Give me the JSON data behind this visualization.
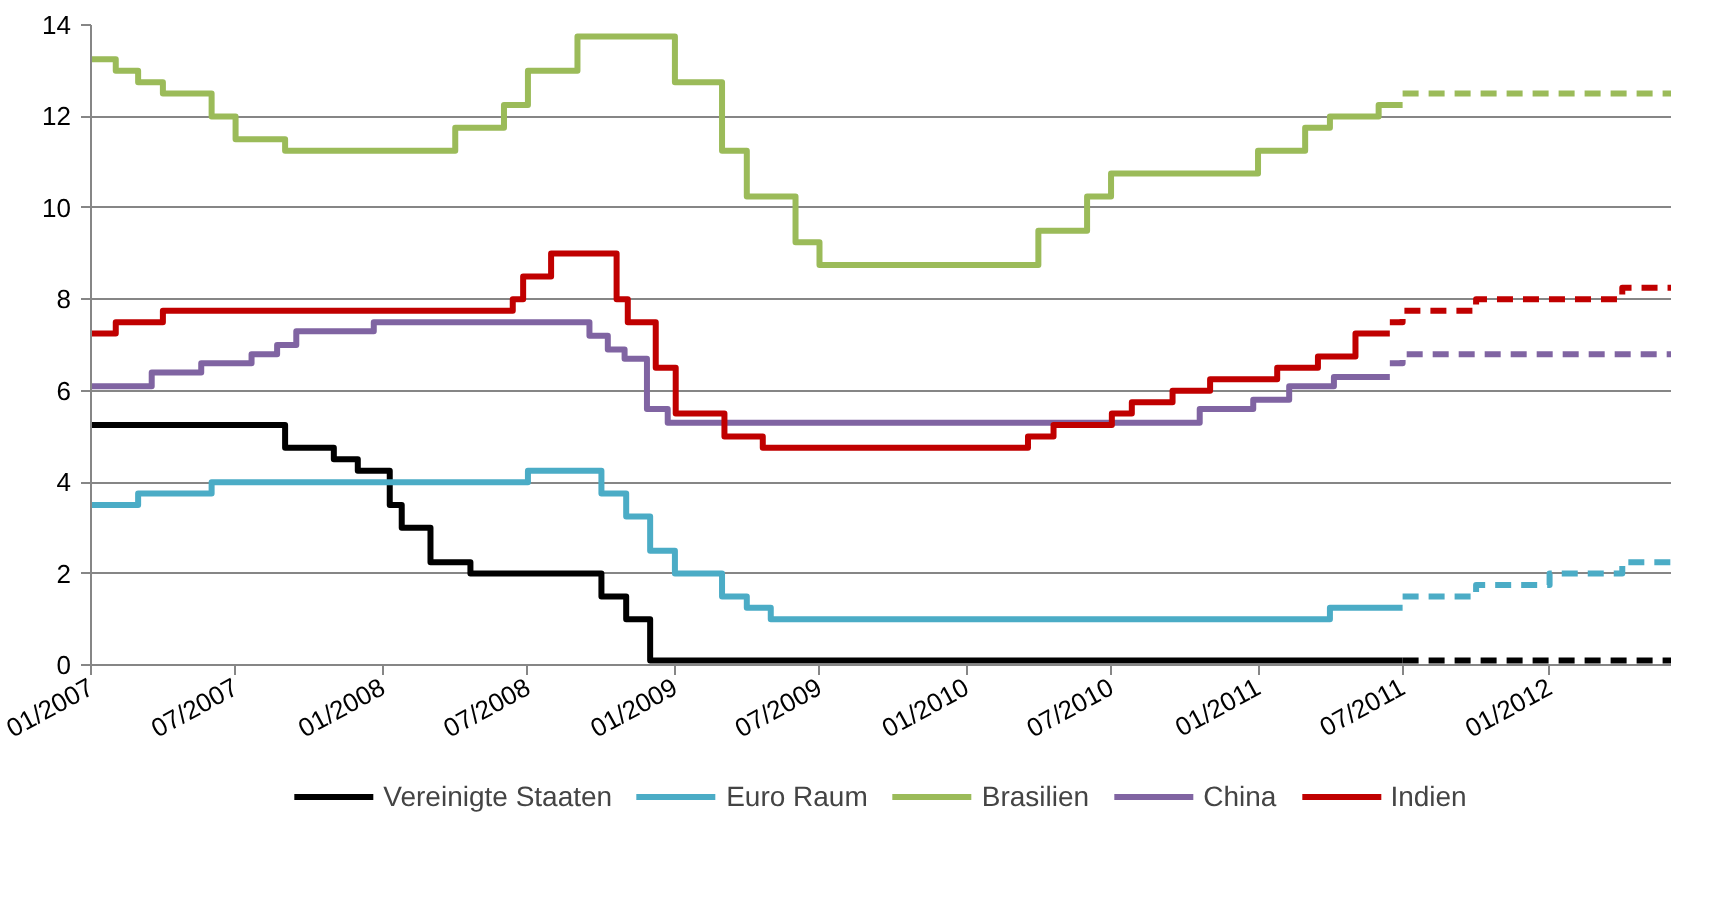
{
  "chart_data": {
    "type": "step",
    "xlim": [
      "2007-01",
      "2012-06"
    ],
    "ylim": [
      0,
      14
    ],
    "yticks": [
      0,
      2,
      4,
      6,
      8,
      10,
      12,
      14
    ],
    "xticks": [
      {
        "value": "2007-01",
        "label": "01/2007"
      },
      {
        "value": "2007-07",
        "label": "07/2007"
      },
      {
        "value": "2008-01",
        "label": "01/2008"
      },
      {
        "value": "2008-07",
        "label": "07/2008"
      },
      {
        "value": "2009-01",
        "label": "01/2009"
      },
      {
        "value": "2009-07",
        "label": "07/2009"
      },
      {
        "value": "2010-01",
        "label": "01/2010"
      },
      {
        "value": "2010-07",
        "label": "07/2010"
      },
      {
        "value": "2011-01",
        "label": "01/2011"
      },
      {
        "value": "2011-07",
        "label": "07/2011"
      },
      {
        "value": "2012-01",
        "label": "01/2012"
      }
    ],
    "grid": "y",
    "legend": "bottom",
    "series": [
      {
        "name": "Vereinigte Staaten",
        "color": "#000000",
        "line_style": "solid",
        "x": [
          "2007-01",
          "2007-09",
          "2007-11",
          "2007-12",
          "2008-01-10",
          "2008-01-25",
          "2008-03",
          "2008-04-20",
          "2008-10",
          "2008-11",
          "2008-12",
          "2011-07"
        ],
        "values": [
          5.25,
          4.75,
          4.5,
          4.25,
          3.5,
          3.0,
          2.25,
          2.0,
          1.5,
          1.0,
          0.1,
          0.1
        ]
      },
      {
        "name": "Euro Raum",
        "color": "#4bacc6",
        "line_style": "solid",
        "x": [
          "2007-01",
          "2007-03",
          "2007-06",
          "2008-07",
          "2008-10",
          "2008-11",
          "2008-12",
          "2009-01",
          "2009-03",
          "2009-04",
          "2009-05",
          "2011-04",
          "2011-07"
        ],
        "values": [
          3.5,
          3.75,
          4.0,
          4.25,
          3.75,
          3.25,
          2.5,
          2.0,
          1.5,
          1.25,
          1.0,
          1.25,
          1.25
        ]
      },
      {
        "name": "Brasilien",
        "color": "#9bbb59",
        "line_style": "solid",
        "x": [
          "2007-01",
          "2007-02",
          "2007-03",
          "2007-04",
          "2007-06",
          "2007-07",
          "2007-09",
          "2008-04",
          "2008-06",
          "2008-07",
          "2008-09",
          "2009-01",
          "2009-03",
          "2009-04",
          "2009-06",
          "2009-07",
          "2010-04",
          "2010-06",
          "2010-07",
          "2011-01",
          "2011-03",
          "2011-04",
          "2011-06",
          "2011-07"
        ],
        "values": [
          13.25,
          13.0,
          12.75,
          12.5,
          12.0,
          11.5,
          11.25,
          11.75,
          12.25,
          13.0,
          13.75,
          12.75,
          11.25,
          10.25,
          9.25,
          8.75,
          9.5,
          10.25,
          10.75,
          11.25,
          11.75,
          12.0,
          12.25,
          12.25
        ]
      },
      {
        "name": "China",
        "color": "#8064a2",
        "line_style": "solid",
        "x": [
          "2007-01",
          "2007-03-18",
          "2007-05-19",
          "2007-07-21",
          "2007-08-22",
          "2007-09-15",
          "2007-12-21",
          "2008-09-16",
          "2008-10-09",
          "2008-10-30",
          "2008-11-27",
          "2008-12-23",
          "2010-10-20",
          "2010-12-26",
          "2011-02-09",
          "2011-04-06",
          "2011-06-15"
        ],
        "values": [
          6.1,
          6.4,
          6.6,
          6.8,
          7.0,
          7.3,
          7.5,
          7.2,
          6.9,
          6.7,
          5.6,
          5.3,
          5.6,
          5.8,
          6.1,
          6.3,
          6.3
        ]
      },
      {
        "name": "Indien",
        "color": "#c00000",
        "line_style": "solid",
        "x": [
          "2007-01",
          "2007-02",
          "2007-04",
          "2008-06-12",
          "2008-06-25",
          "2008-07-30",
          "2008-10-20",
          "2008-11-03",
          "2008-12-08",
          "2009-01-02",
          "2009-03-04",
          "2009-04-21",
          "2010-03-19",
          "2010-04-20",
          "2010-07-02",
          "2010-07-27",
          "2010-09-16",
          "2010-11-02",
          "2011-01-25",
          "2011-03-17",
          "2011-05-03",
          "2011-06-15"
        ],
        "values": [
          7.25,
          7.5,
          7.75,
          8.0,
          8.5,
          9.0,
          8.0,
          7.5,
          6.5,
          5.5,
          5.0,
          4.75,
          5.0,
          5.25,
          5.5,
          5.75,
          6.0,
          6.25,
          6.5,
          6.75,
          7.25,
          7.25
        ]
      },
      {
        "color": "#000000",
        "line_style": "dashed",
        "x": [
          "2011-07",
          "2012-06"
        ],
        "values": [
          0.1,
          0.1
        ]
      },
      {
        "color": "#4bacc6",
        "line_style": "dashed",
        "x": [
          "2011-07",
          "2011-10",
          "2012-01",
          "2012-04",
          "2012-06"
        ],
        "values": [
          1.5,
          1.75,
          2.0,
          2.25,
          2.25
        ]
      },
      {
        "color": "#9bbb59",
        "line_style": "dashed",
        "x": [
          "2011-07",
          "2012-06"
        ],
        "values": [
          12.5,
          12.5
        ]
      },
      {
        "color": "#8064a2",
        "line_style": "dashed",
        "x": [
          "2011-06-15",
          "2011-07",
          "2012-06"
        ],
        "values": [
          6.6,
          6.8,
          6.8
        ]
      },
      {
        "color": "#c00000",
        "line_style": "dashed",
        "x": [
          "2011-06-15",
          "2011-07",
          "2011-10",
          "2012-04",
          "2012-06"
        ],
        "values": [
          7.5,
          7.75,
          8.0,
          8.25,
          8.25
        ]
      }
    ]
  }
}
